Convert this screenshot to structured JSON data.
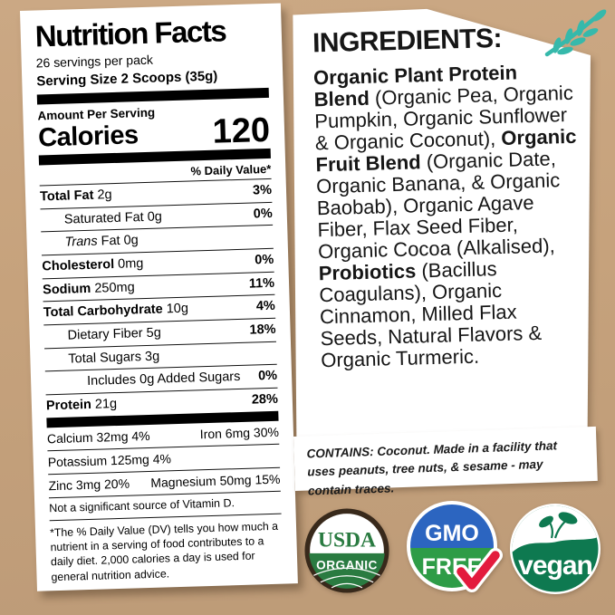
{
  "background": {
    "kraft_color": "#c6a27c",
    "accent_teal": "#36b9ab"
  },
  "nutrition_panel": {
    "title": "Nutrition Facts",
    "servings_line": "26 servings per pack",
    "serving_size_line": "Serving Size 2 Scoops (35g)",
    "amount_per_serving": "Amount Per Serving",
    "calories_label": "Calories",
    "calories_value": "120",
    "daily_value_header": "% Daily Value*",
    "rows": [
      {
        "indent": 0,
        "parts": [
          {
            "text": "Total Fat ",
            "bold": true
          },
          {
            "text": "2g"
          }
        ],
        "value": "3%"
      },
      {
        "indent": 1,
        "parts": [
          {
            "text": "Saturated Fat 0g"
          }
        ],
        "value": "0%"
      },
      {
        "indent": 1,
        "parts": [
          {
            "text": "Trans",
            "italic": true
          },
          {
            "text": " Fat 0g"
          }
        ],
        "value": ""
      },
      {
        "indent": 0,
        "parts": [
          {
            "text": "Cholesterol ",
            "bold": true
          },
          {
            "text": "0mg"
          }
        ],
        "value": "0%"
      },
      {
        "indent": 0,
        "parts": [
          {
            "text": "Sodium ",
            "bold": true
          },
          {
            "text": "250mg"
          }
        ],
        "value": "11%"
      },
      {
        "indent": 0,
        "parts": [
          {
            "text": "Total Carbohydrate ",
            "bold": true
          },
          {
            "text": "10g"
          }
        ],
        "value": "4%"
      },
      {
        "indent": 1,
        "parts": [
          {
            "text": "Dietary Fiber 5g"
          }
        ],
        "value": "18%"
      },
      {
        "indent": 1,
        "parts": [
          {
            "text": "Total Sugars 3g"
          }
        ],
        "value": ""
      },
      {
        "indent": 2,
        "parts": [
          {
            "text": "Includes 0g Added Sugars"
          }
        ],
        "value": "0%"
      },
      {
        "indent": 0,
        "parts": [
          {
            "text": "Protein ",
            "bold": true
          },
          {
            "text": "21g"
          }
        ],
        "value": "28%"
      }
    ],
    "minerals": [
      {
        "left": "Calcium 32mg 4%",
        "right": "Iron 6mg 30%"
      },
      {
        "left": "Potassium 125mg 4%",
        "right": ""
      },
      {
        "left": "Zinc 3mg 20%",
        "right": "Magnesium 50mg 15%"
      }
    ],
    "no_significant_source": "Not a significant source of Vitamin D.",
    "footnote": "*The % Daily Value (DV) tells you how much a nutrient in a serving of food contributes to a daily diet. 2,000 calories a day is used for general nutrition advice."
  },
  "ingredients_panel": {
    "heading": "INGREDIENTS:",
    "segments": [
      {
        "text": "Organic Plant Protein Blend",
        "bold": true
      },
      {
        "text": " (Organic Pea, Organic Pumpkin, Organic Sunflower & Organic Coconut), "
      },
      {
        "text": "Organic Fruit Blend",
        "bold": true
      },
      {
        "text": " (Organic Date, Organic Banana, & Organic Baobab), Organic Agave Fiber, Flax Seed Fiber, Organic Cocoa (Alkalised), "
      },
      {
        "text": "Probiotics",
        "bold": true
      },
      {
        "text": " (Bacillus Coagulans), Organic Cinnamon, Milled Flax Seeds, Natural Flavors & Organic Turmeric."
      }
    ]
  },
  "contains_box": {
    "text": "CONTAINS: Coconut. Made in a facility that uses peanuts, tree nuts, & sesame - may contain traces."
  },
  "badges": {
    "usda": {
      "line1": "USDA",
      "line2": "ORGANIC",
      "green": "#2a7b41",
      "border_brown": "#38291b"
    },
    "gmo": {
      "line1": "GMO",
      "line2": "FREE",
      "blue": "#2c65c0",
      "green": "#2e9c47",
      "check_red": "#e31b3d"
    },
    "vegan": {
      "label": "vegan",
      "green": "#0e7950"
    }
  }
}
